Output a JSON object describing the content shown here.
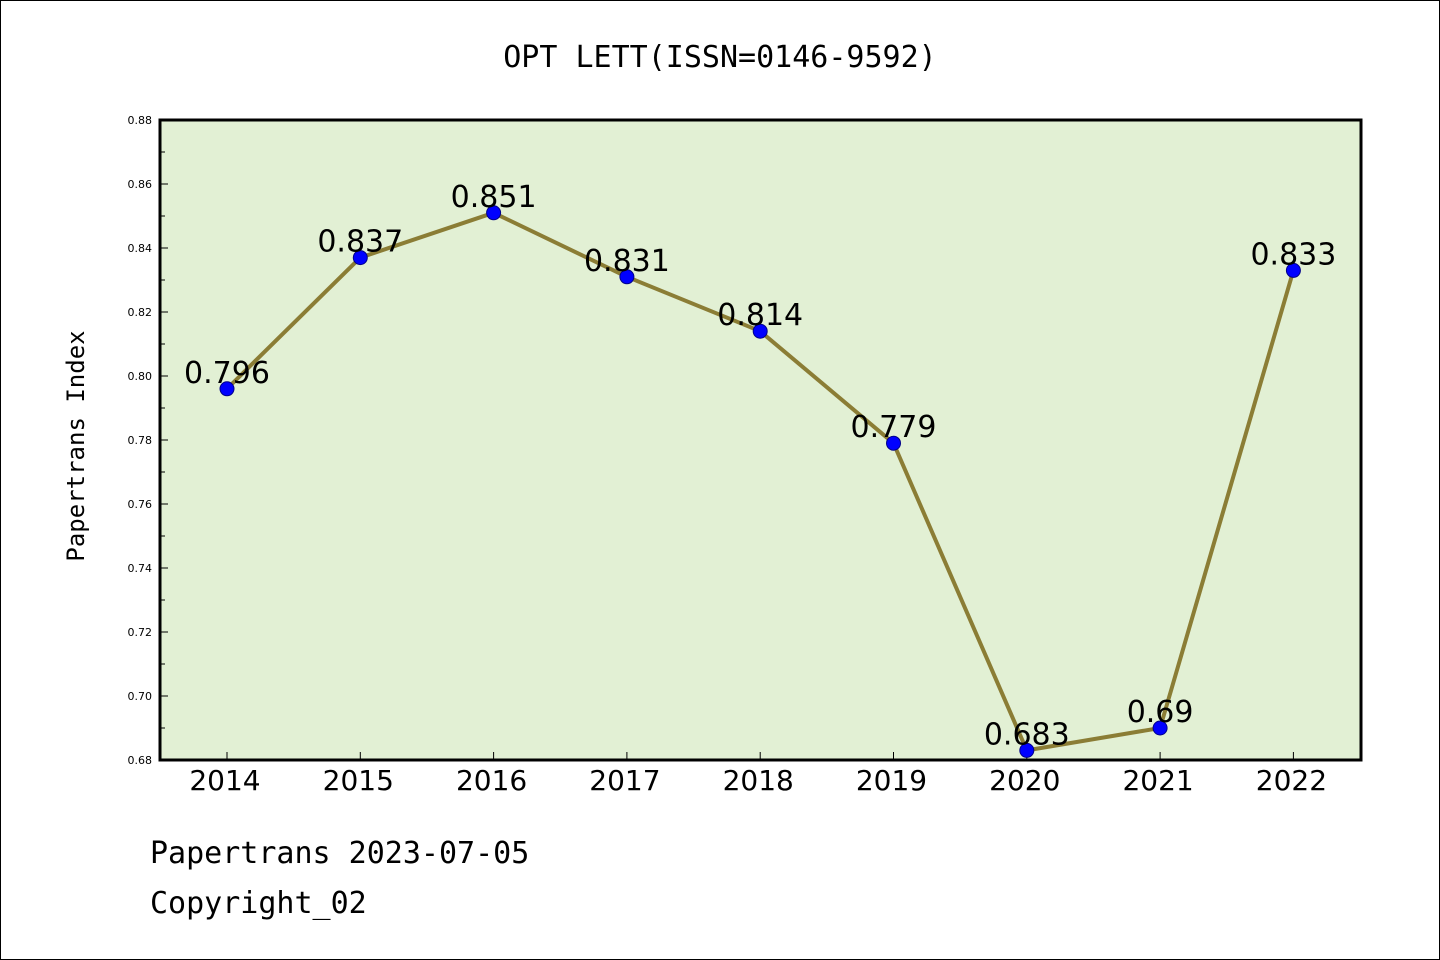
{
  "chart_data": {
    "type": "line",
    "title": "OPT LETT(ISSN=0146-9592)",
    "ylabel": "Papertrans Index",
    "xlabel": "",
    "categories": [
      "2014",
      "2015",
      "2016",
      "2017",
      "2018",
      "2019",
      "2020",
      "2021",
      "2022"
    ],
    "series": [
      {
        "values": [
          0.796,
          0.837,
          0.851,
          0.831,
          0.814,
          0.779,
          0.683,
          0.69,
          0.833
        ]
      }
    ],
    "data_labels": [
      "0.796",
      "0.837",
      "0.851",
      "0.831",
      "0.814",
      "0.779",
      "0.683",
      "0.69",
      "0.833"
    ],
    "ylim": [
      0.68,
      0.88
    ],
    "yticks": [
      "0.68",
      "0.70",
      "0.72",
      "0.74",
      "0.76",
      "0.78",
      "0.80",
      "0.82",
      "0.84",
      "0.86",
      "0.88"
    ],
    "grid": false,
    "legend": "none",
    "colors": {
      "line": "#8b7d35",
      "marker": "#0000ff",
      "plot_background": "#e2f0d4",
      "axes": "#000000"
    }
  },
  "footer": {
    "line1": "Papertrans 2023-07-05",
    "line2": "Copyright_02"
  }
}
